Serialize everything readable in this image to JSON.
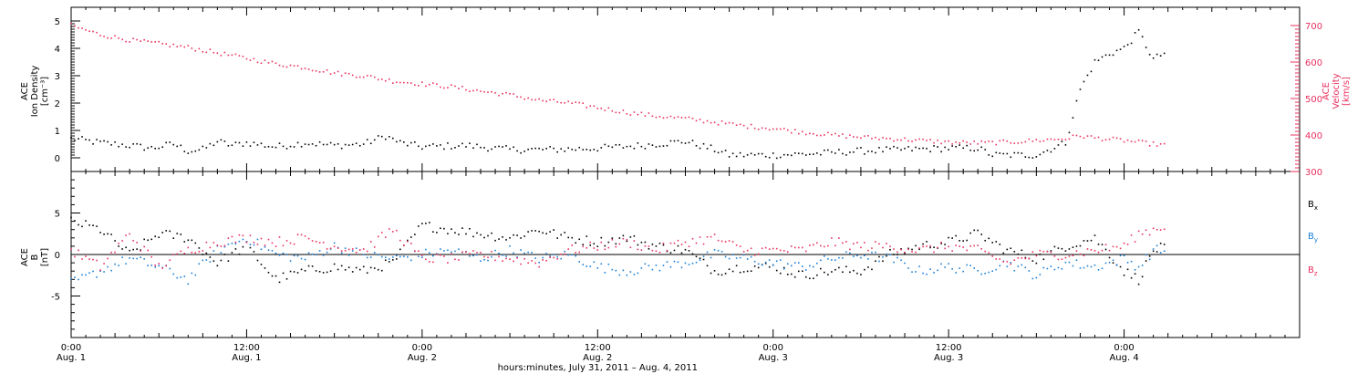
{
  "chart_data": [
    {
      "type": "scatter",
      "panel": "upper",
      "left_axis": {
        "label_lines": [
          "ACE",
          "Ion Density",
          "[cm⁻³]"
        ],
        "ylim": [
          -0.5,
          5.5
        ],
        "ticks": [
          0,
          1,
          2,
          3,
          4,
          5
        ],
        "color": "#000000"
      },
      "right_axis": {
        "label_lines": [
          "ACE",
          "Velocity",
          "[km/s]"
        ],
        "ylim": [
          300,
          750
        ],
        "ticks": [
          300,
          400,
          500,
          600,
          700
        ],
        "color": "#e8305f"
      },
      "series": [
        {
          "axis": "left",
          "color": "#000000",
          "points": [
            [
              0.0,
              0.7
            ],
            [
              2.0,
              0.55
            ],
            [
              4.0,
              0.45
            ],
            [
              5.5,
              0.35
            ],
            [
              7.0,
              0.5
            ],
            [
              8.0,
              0.25
            ],
            [
              9.0,
              0.3
            ],
            [
              10.0,
              0.6
            ],
            [
              11.0,
              0.45
            ],
            [
              12.0,
              0.55
            ],
            [
              14.0,
              0.4
            ],
            [
              16.0,
              0.55
            ],
            [
              18.0,
              0.45
            ],
            [
              20.0,
              0.5
            ],
            [
              21.5,
              0.8
            ],
            [
              22.5,
              0.55
            ],
            [
              24.0,
              0.4
            ],
            [
              27.0,
              0.45
            ],
            [
              30.0,
              0.3
            ],
            [
              33.0,
              0.3
            ],
            [
              36.0,
              0.35
            ],
            [
              39.0,
              0.45
            ],
            [
              42.0,
              0.6
            ],
            [
              44.0,
              0.3
            ],
            [
              45.0,
              0.1
            ],
            [
              48.0,
              0.1
            ],
            [
              51.0,
              0.15
            ],
            [
              54.0,
              0.25
            ],
            [
              57.0,
              0.3
            ],
            [
              60.0,
              0.35
            ],
            [
              62.0,
              0.35
            ],
            [
              63.0,
              0.1
            ],
            [
              66.0,
              0.1
            ],
            [
              68.0,
              0.55
            ],
            [
              69.0,
              2.5
            ],
            [
              70.0,
              3.5
            ],
            [
              71.0,
              3.8
            ],
            [
              72.0,
              4.0
            ],
            [
              73.0,
              4.6
            ],
            [
              74.0,
              3.6
            ],
            [
              75.0,
              3.9
            ]
          ]
        },
        {
          "axis": "right",
          "color": "#e8305f",
          "points": [
            [
              0.0,
              700
            ],
            [
              2.0,
              675
            ],
            [
              4.0,
              660
            ],
            [
              6.0,
              650
            ],
            [
              8.0,
              640
            ],
            [
              10.0,
              625
            ],
            [
              12.0,
              610
            ],
            [
              14.0,
              595
            ],
            [
              16.0,
              585
            ],
            [
              18.0,
              570
            ],
            [
              20.0,
              562
            ],
            [
              22.0,
              548
            ],
            [
              24.0,
              540
            ],
            [
              26.0,
              532
            ],
            [
              28.0,
              520
            ],
            [
              30.0,
              510
            ],
            [
              32.0,
              495
            ],
            [
              34.0,
              488
            ],
            [
              36.0,
              475
            ],
            [
              38.0,
              462
            ],
            [
              40.0,
              452
            ],
            [
              42.0,
              445
            ],
            [
              44.0,
              435
            ],
            [
              46.0,
              425
            ],
            [
              48.0,
              418
            ],
            [
              50.0,
              408
            ],
            [
              52.0,
              400
            ],
            [
              54.0,
              394
            ],
            [
              56.0,
              390
            ],
            [
              58.0,
              385
            ],
            [
              60.0,
              380
            ],
            [
              62.0,
              378
            ],
            [
              64.0,
              380
            ],
            [
              66.0,
              385
            ],
            [
              68.0,
              390
            ],
            [
              69.0,
              398
            ],
            [
              70.0,
              392
            ],
            [
              72.0,
              385
            ],
            [
              74.0,
              375
            ],
            [
              75.0,
              372
            ]
          ]
        }
      ]
    },
    {
      "type": "scatter",
      "panel": "lower",
      "left_axis": {
        "label_lines": [
          "ACE",
          "B",
          "[nT]"
        ],
        "ylim": [
          -10,
          10
        ],
        "ticks": [
          -5,
          0,
          5
        ],
        "color": "#000000"
      },
      "series": [
        {
          "name": "Bx",
          "color": "#000000",
          "points": [
            [
              0.0,
              4.0
            ],
            [
              2.0,
              3.0
            ],
            [
              4.0,
              0.0
            ],
            [
              6.0,
              2.5
            ],
            [
              8.0,
              2.0
            ],
            [
              10.0,
              -1.0
            ],
            [
              12.0,
              1.0
            ],
            [
              14.0,
              -3.0
            ],
            [
              16.0,
              -2.0
            ],
            [
              18.0,
              -1.5
            ],
            [
              20.0,
              -2.0
            ],
            [
              22.0,
              -1.0
            ],
            [
              24.0,
              3.5
            ],
            [
              26.0,
              3.0
            ],
            [
              28.0,
              2.5
            ],
            [
              30.0,
              2.0
            ],
            [
              32.0,
              3.0
            ],
            [
              34.0,
              2.0
            ],
            [
              36.0,
              1.5
            ],
            [
              38.0,
              2.0
            ],
            [
              40.0,
              1.0
            ],
            [
              42.0,
              0.5
            ],
            [
              44.0,
              -2.0
            ],
            [
              46.0,
              -1.5
            ],
            [
              48.0,
              -1.5
            ],
            [
              50.0,
              -2.5
            ],
            [
              52.0,
              -2.0
            ],
            [
              54.0,
              -2.0
            ],
            [
              56.0,
              0.0
            ],
            [
              58.0,
              1.0
            ],
            [
              60.0,
              1.5
            ],
            [
              62.0,
              2.5
            ],
            [
              64.0,
              0.5
            ],
            [
              66.0,
              -0.5
            ],
            [
              68.0,
              1.0
            ],
            [
              70.0,
              2.0
            ],
            [
              72.0,
              -2.0
            ],
            [
              73.0,
              -3.0
            ],
            [
              74.0,
              0.5
            ],
            [
              75.0,
              1.0
            ]
          ]
        },
        {
          "name": "By",
          "color": "#1a7fd6",
          "points": [
            [
              0.0,
              -3.5
            ],
            [
              2.0,
              -2.0
            ],
            [
              4.0,
              -0.5
            ],
            [
              6.0,
              -1.5
            ],
            [
              8.0,
              -3.0
            ],
            [
              10.0,
              0.5
            ],
            [
              12.0,
              2.0
            ],
            [
              14.0,
              0.0
            ],
            [
              16.0,
              -0.5
            ],
            [
              18.0,
              1.0
            ],
            [
              20.0,
              0.0
            ],
            [
              22.0,
              -0.5
            ],
            [
              24.0,
              0.0
            ],
            [
              26.0,
              0.5
            ],
            [
              28.0,
              -0.5
            ],
            [
              30.0,
              0.5
            ],
            [
              32.0,
              -0.5
            ],
            [
              34.0,
              0.0
            ],
            [
              36.0,
              -1.5
            ],
            [
              38.0,
              -2.0
            ],
            [
              40.0,
              -1.5
            ],
            [
              42.0,
              -1.0
            ],
            [
              44.0,
              0.0
            ],
            [
              46.0,
              -0.5
            ],
            [
              48.0,
              -1.0
            ],
            [
              50.0,
              -1.5
            ],
            [
              52.0,
              -0.5
            ],
            [
              54.0,
              0.0
            ],
            [
              56.0,
              -0.5
            ],
            [
              58.0,
              -2.0
            ],
            [
              60.0,
              -1.5
            ],
            [
              62.0,
              -2.0
            ],
            [
              64.0,
              -1.0
            ],
            [
              66.0,
              -2.5
            ],
            [
              68.0,
              -1.0
            ],
            [
              70.0,
              -1.5
            ],
            [
              72.0,
              -0.5
            ],
            [
              73.0,
              -1.5
            ],
            [
              74.0,
              0.5
            ],
            [
              75.0,
              0.5
            ]
          ]
        },
        {
          "name": "Bz",
          "color": "#e8305f",
          "points": [
            [
              0.0,
              0.5
            ],
            [
              2.0,
              -1.5
            ],
            [
              4.0,
              2.5
            ],
            [
              6.0,
              -1.5
            ],
            [
              8.0,
              0.5
            ],
            [
              10.0,
              1.5
            ],
            [
              12.0,
              2.0
            ],
            [
              14.0,
              1.5
            ],
            [
              16.0,
              2.0
            ],
            [
              18.0,
              1.0
            ],
            [
              20.0,
              0.5
            ],
            [
              22.0,
              3.0
            ],
            [
              24.0,
              -0.5
            ],
            [
              26.0,
              -0.5
            ],
            [
              28.0,
              0.0
            ],
            [
              30.0,
              -0.5
            ],
            [
              32.0,
              -1.0
            ],
            [
              34.0,
              0.5
            ],
            [
              36.0,
              1.0
            ],
            [
              38.0,
              1.5
            ],
            [
              40.0,
              0.5
            ],
            [
              42.0,
              1.5
            ],
            [
              44.0,
              2.0
            ],
            [
              46.0,
              0.5
            ],
            [
              48.0,
              0.5
            ],
            [
              50.0,
              0.5
            ],
            [
              52.0,
              1.5
            ],
            [
              54.0,
              1.0
            ],
            [
              56.0,
              1.0
            ],
            [
              58.0,
              0.5
            ],
            [
              60.0,
              1.0
            ],
            [
              62.0,
              0.5
            ],
            [
              64.0,
              -1.0
            ],
            [
              66.0,
              0.0
            ],
            [
              68.0,
              0.0
            ],
            [
              70.0,
              0.5
            ],
            [
              72.0,
              1.0
            ],
            [
              73.0,
              2.5
            ],
            [
              74.0,
              3.0
            ],
            [
              75.0,
              3.5
            ]
          ]
        }
      ],
      "legend": [
        {
          "main": "B",
          "sub": "x",
          "color": "#000000"
        },
        {
          "main": "B",
          "sub": "y",
          "color": "#1a7fd6"
        },
        {
          "main": "B",
          "sub": "z",
          "color": "#e8305f"
        }
      ]
    }
  ],
  "x_axis": {
    "range_hours": [
      0,
      84
    ],
    "major_ticks": [
      {
        "hour": 0,
        "time": "0:00",
        "date": "Aug. 1"
      },
      {
        "hour": 12,
        "time": "12:00",
        "date": "Aug. 1"
      },
      {
        "hour": 24,
        "time": "0:00",
        "date": "Aug. 2"
      },
      {
        "hour": 36,
        "time": "12:00",
        "date": "Aug. 2"
      },
      {
        "hour": 48,
        "time": "0:00",
        "date": "Aug. 3"
      },
      {
        "hour": 60,
        "time": "12:00",
        "date": "Aug. 3"
      },
      {
        "hour": 72,
        "time": "0:00",
        "date": "Aug. 4"
      }
    ],
    "label": "hours:minutes, July 31, 2011 – Aug.  4, 2011"
  }
}
